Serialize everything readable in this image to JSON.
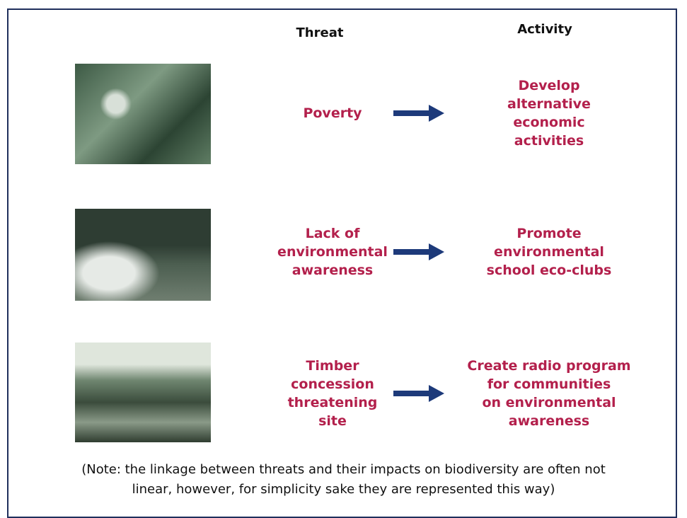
{
  "header": {
    "threat": "Threat",
    "activity": "Activity"
  },
  "rows": [
    {
      "threat": [
        "Poverty"
      ],
      "activity": [
        "Develop",
        "alternative",
        "economic",
        "activities"
      ]
    },
    {
      "threat": [
        "Lack of",
        "environmental",
        "awareness"
      ],
      "activity": [
        "Promote",
        "environmental",
        "school eco-clubs"
      ]
    },
    {
      "threat": [
        "Timber",
        "concession",
        "threatening",
        "site"
      ],
      "activity": [
        "Create radio program",
        "for communities",
        "on environmental",
        "awareness"
      ]
    }
  ],
  "note": [
    "(Note: the linkage between threats and their impacts on biodiversity are often not",
    "linear, however, for simplicity sake they are represented this way)"
  ]
}
